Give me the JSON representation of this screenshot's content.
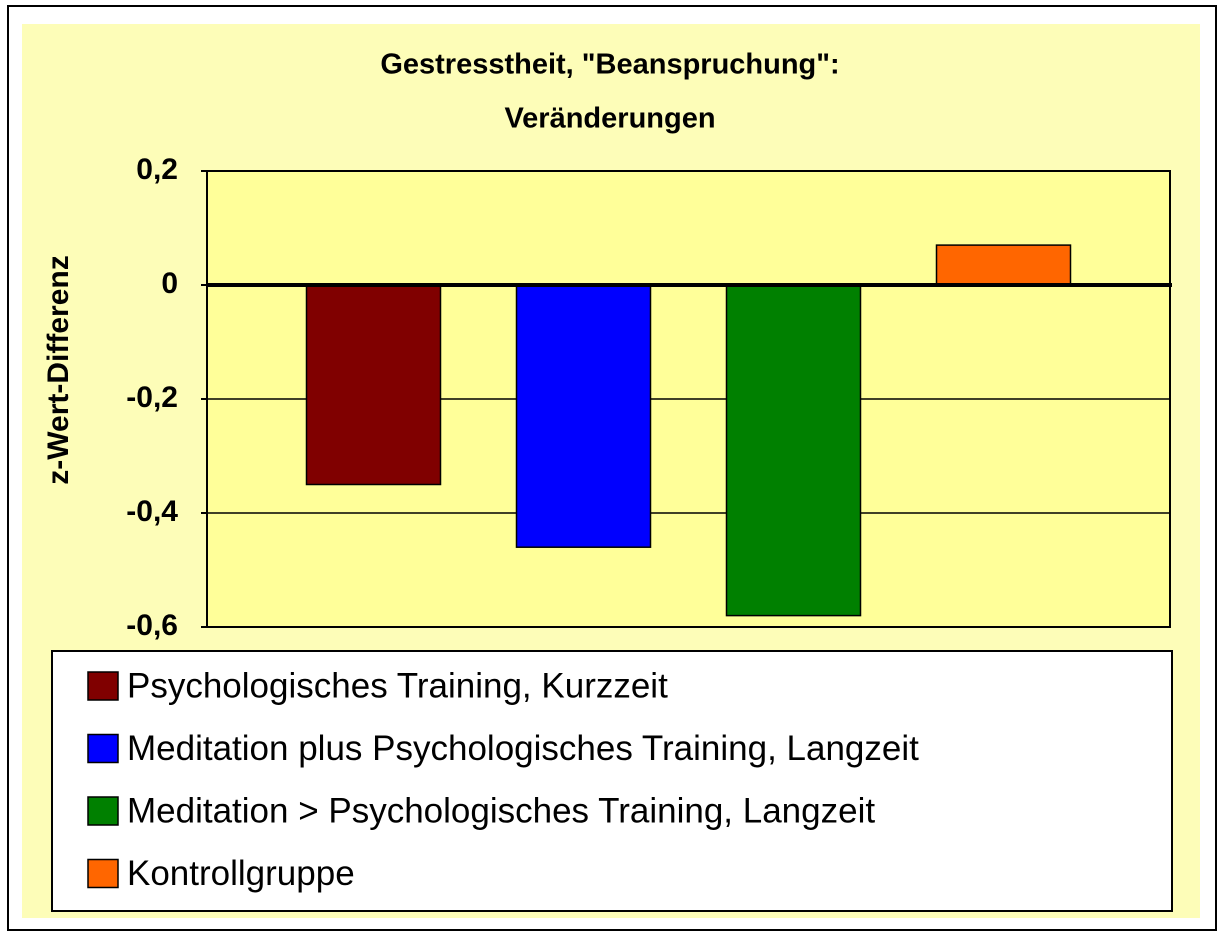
{
  "chart_data": {
    "type": "bar",
    "title": [
      "Gestresstheit, \"Beanspruchung\":",
      "Veränderungen"
    ],
    "y_label": "z-Wert-Differenz",
    "categories": [
      null
    ],
    "series": [
      {
        "name": "Psychologisches Training, Kurzzeit",
        "color": "#800000",
        "values": [
          -0.35
        ]
      },
      {
        "name": "Meditation plus Psychologisches Training, Langzeit",
        "color": "#0000ff",
        "values": [
          -0.46
        ]
      },
      {
        "name": "Meditation > Psychologisches Training, Langzeit",
        "color": "#008000",
        "values": [
          -0.58
        ]
      },
      {
        "name": "Kontrollgruppe",
        "color": "#ff6600",
        "values": [
          0.07
        ]
      }
    ],
    "ylim": [
      -0.6,
      0.2
    ],
    "yticks": [
      {
        "value": 0.2,
        "label": "0,2"
      },
      0,
      {
        "value": -0.2,
        "label": "-0,2"
      },
      {
        "value": -0.4,
        "label": "-0,4"
      },
      {
        "value": -0.6,
        "label": "-0,6"
      }
    ],
    "grid": true
  }
}
